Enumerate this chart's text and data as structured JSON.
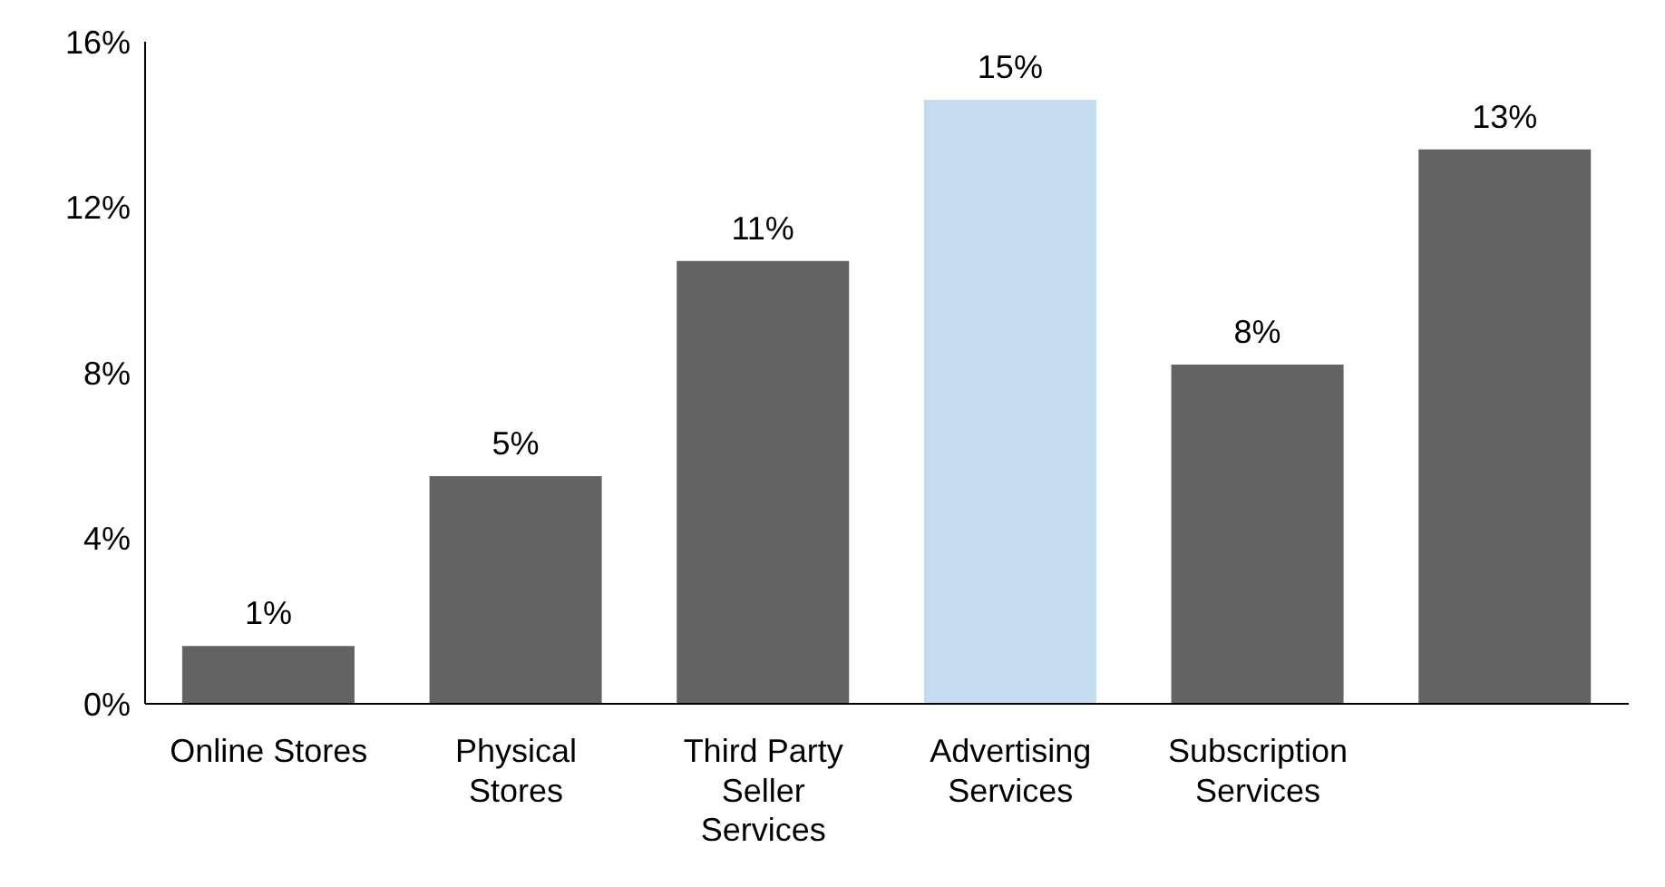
{
  "chart_data": {
    "type": "bar",
    "categories": [
      "Online Stores",
      "Physical Stores",
      "Third Party Seller Services",
      "Advertising Services",
      "Subscription Services",
      null
    ],
    "values": [
      1.4,
      5.5,
      10.7,
      14.6,
      8.2,
      13.4
    ],
    "colors": [
      "#636363",
      "#636363",
      "#636363",
      "#c5dcf0",
      "#636363",
      "#636363"
    ],
    "value_labels": [
      "1%",
      "5%",
      "11%",
      "15%",
      "8%",
      "13%"
    ],
    "ylim": [
      0,
      16
    ],
    "yticks": [
      {
        "value": 0,
        "label": "0%"
      },
      {
        "value": 4,
        "label": "4%"
      },
      {
        "value": 8,
        "label": "8%"
      },
      {
        "value": 12,
        "label": "12%"
      },
      {
        "value": 16,
        "label": "16%"
      }
    ],
    "grid": false,
    "legend": false
  }
}
